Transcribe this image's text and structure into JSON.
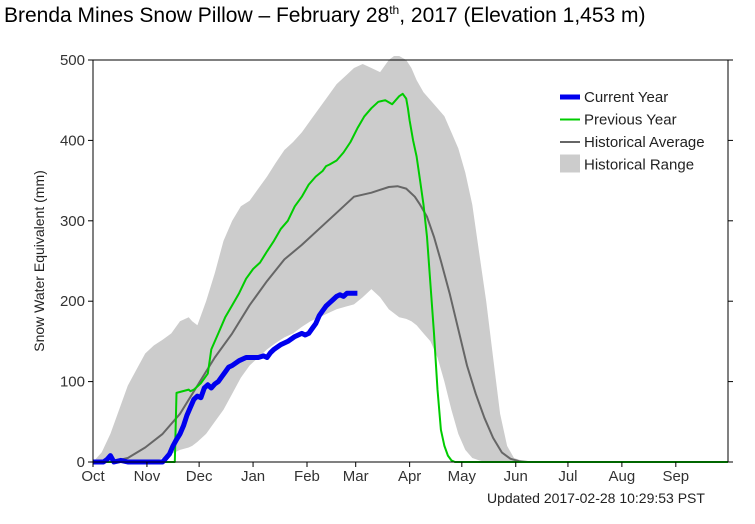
{
  "title": {
    "prefix": "Brenda Mines Snow Pillow – February 28",
    "sup": "th",
    "suffix": ", 2017 (Elevation 1,453 m)"
  },
  "updated": "Updated 2017-02-28 10:29:53 PST",
  "chart_data": {
    "type": "line",
    "ylabel": "Snow Water Equivalent (mm)",
    "ylim": [
      0,
      500
    ],
    "yticks": [
      0,
      100,
      200,
      300,
      400,
      500
    ],
    "xlim": [
      0,
      365
    ],
    "months": [
      {
        "label": "Oct",
        "day": 0
      },
      {
        "label": "Nov",
        "day": 31
      },
      {
        "label": "Dec",
        "day": 61
      },
      {
        "label": "Jan",
        "day": 92
      },
      {
        "label": "Feb",
        "day": 123
      },
      {
        "label": "Mar",
        "day": 151
      },
      {
        "label": "Apr",
        "day": 182
      },
      {
        "label": "May",
        "day": 212
      },
      {
        "label": "Jun",
        "day": 243
      },
      {
        "label": "Jul",
        "day": 273
      },
      {
        "label": "Aug",
        "day": 304
      },
      {
        "label": "Sep",
        "day": 335
      }
    ],
    "legend": {
      "position": "top-right",
      "entries": [
        {
          "label": "Current Year",
          "color": "#0000ee",
          "kind": "thick"
        },
        {
          "label": "Previous Year",
          "color": "#00cc00",
          "kind": "line"
        },
        {
          "label": "Historical Average",
          "color": "#666666",
          "kind": "line"
        },
        {
          "label": "Historical Range",
          "color": "#cccccc",
          "kind": "box"
        }
      ]
    },
    "series": [
      {
        "name": "Current Year",
        "color": "#0000ee",
        "x": [
          0,
          6,
          8,
          10,
          12,
          16,
          20,
          27,
          35,
          40,
          42,
          44,
          46,
          48,
          50,
          52,
          54,
          56,
          58,
          60,
          62,
          64,
          66,
          68,
          70,
          72,
          74,
          76,
          78,
          80,
          84,
          88,
          92,
          95,
          98,
          100,
          102,
          104,
          108,
          112,
          116,
          120,
          122,
          124,
          126,
          128,
          130,
          132,
          134,
          136,
          138,
          140,
          142,
          144,
          146,
          150,
          152
        ],
        "y": [
          0,
          0,
          3,
          8,
          0,
          2,
          0,
          0,
          0,
          0,
          5,
          10,
          20,
          28,
          35,
          45,
          58,
          68,
          78,
          82,
          80,
          92,
          96,
          92,
          97,
          100,
          106,
          112,
          118,
          120,
          126,
          130,
          130,
          130,
          132,
          130,
          136,
          140,
          146,
          150,
          156,
          160,
          158,
          160,
          166,
          172,
          182,
          188,
          194,
          198,
          202,
          206,
          208,
          206,
          210,
          210,
          210
        ]
      },
      {
        "name": "Previous Year",
        "color": "#00cc00",
        "x": [
          0,
          40,
          47,
          48,
          55,
          56,
          58,
          62,
          66,
          68,
          72,
          76,
          80,
          84,
          88,
          92,
          96,
          100,
          104,
          108,
          112,
          116,
          120,
          124,
          128,
          132,
          134,
          136,
          140,
          144,
          148,
          152,
          156,
          160,
          164,
          168,
          172,
          176,
          178,
          180,
          181,
          182,
          184,
          186,
          188,
          190,
          192,
          194,
          196,
          198,
          200,
          202,
          204,
          206,
          208,
          210,
          212,
          214,
          215,
          216,
          218,
          365
        ],
        "y": [
          0,
          0,
          0,
          86,
          90,
          88,
          90,
          98,
          110,
          140,
          160,
          180,
          195,
          210,
          228,
          240,
          248,
          262,
          275,
          290,
          300,
          318,
          330,
          345,
          355,
          362,
          368,
          370,
          375,
          385,
          398,
          415,
          430,
          440,
          448,
          450,
          445,
          455,
          458,
          452,
          440,
          425,
          400,
          380,
          350,
          320,
          280,
          220,
          160,
          90,
          40,
          20,
          8,
          2,
          0,
          0,
          0,
          0,
          0,
          0,
          0,
          0
        ]
      },
      {
        "name": "Historical Average",
        "color": "#666666",
        "x": [
          0,
          10,
          20,
          30,
          40,
          50,
          60,
          70,
          80,
          90,
          100,
          110,
          120,
          130,
          140,
          150,
          160,
          170,
          175,
          180,
          185,
          188,
          192,
          196,
          200,
          205,
          210,
          215,
          220,
          225,
          230,
          235,
          240,
          245,
          250,
          365
        ],
        "y": [
          0,
          0,
          5,
          18,
          35,
          60,
          95,
          130,
          160,
          195,
          225,
          252,
          270,
          290,
          310,
          330,
          335,
          342,
          343,
          340,
          330,
          320,
          305,
          280,
          250,
          210,
          165,
          120,
          85,
          55,
          30,
          12,
          4,
          1,
          0,
          0
        ]
      }
    ],
    "range": {
      "name": "Historical Range",
      "color": "#cccccc",
      "x": [
        0,
        5,
        10,
        15,
        20,
        25,
        30,
        35,
        40,
        45,
        50,
        55,
        57,
        60,
        65,
        70,
        75,
        80,
        85,
        90,
        95,
        100,
        105,
        110,
        115,
        120,
        125,
        130,
        135,
        140,
        145,
        150,
        155,
        160,
        165,
        170,
        173,
        176,
        180,
        183,
        186,
        190,
        194,
        198,
        202,
        206,
        210,
        214,
        218,
        222,
        226,
        230,
        234,
        238,
        242,
        246,
        250,
        365
      ],
      "upper": [
        0,
        12,
        35,
        65,
        95,
        115,
        135,
        145,
        152,
        160,
        175,
        180,
        175,
        170,
        200,
        235,
        275,
        300,
        318,
        325,
        340,
        355,
        372,
        388,
        398,
        410,
        425,
        440,
        455,
        470,
        480,
        490,
        495,
        490,
        485,
        500,
        505,
        505,
        500,
        490,
        475,
        460,
        450,
        440,
        430,
        410,
        390,
        360,
        320,
        260,
        200,
        130,
        60,
        20,
        5,
        2,
        0,
        0
      ],
      "lower": [
        0,
        0,
        0,
        0,
        0,
        0,
        0,
        0,
        5,
        10,
        15,
        18,
        20,
        25,
        35,
        50,
        65,
        85,
        105,
        120,
        130,
        140,
        148,
        155,
        160,
        168,
        175,
        180,
        185,
        190,
        193,
        196,
        205,
        215,
        205,
        190,
        185,
        180,
        178,
        175,
        170,
        160,
        150,
        130,
        100,
        65,
        35,
        15,
        5,
        2,
        0,
        0,
        0,
        0,
        0,
        0,
        0,
        0
      ]
    }
  }
}
